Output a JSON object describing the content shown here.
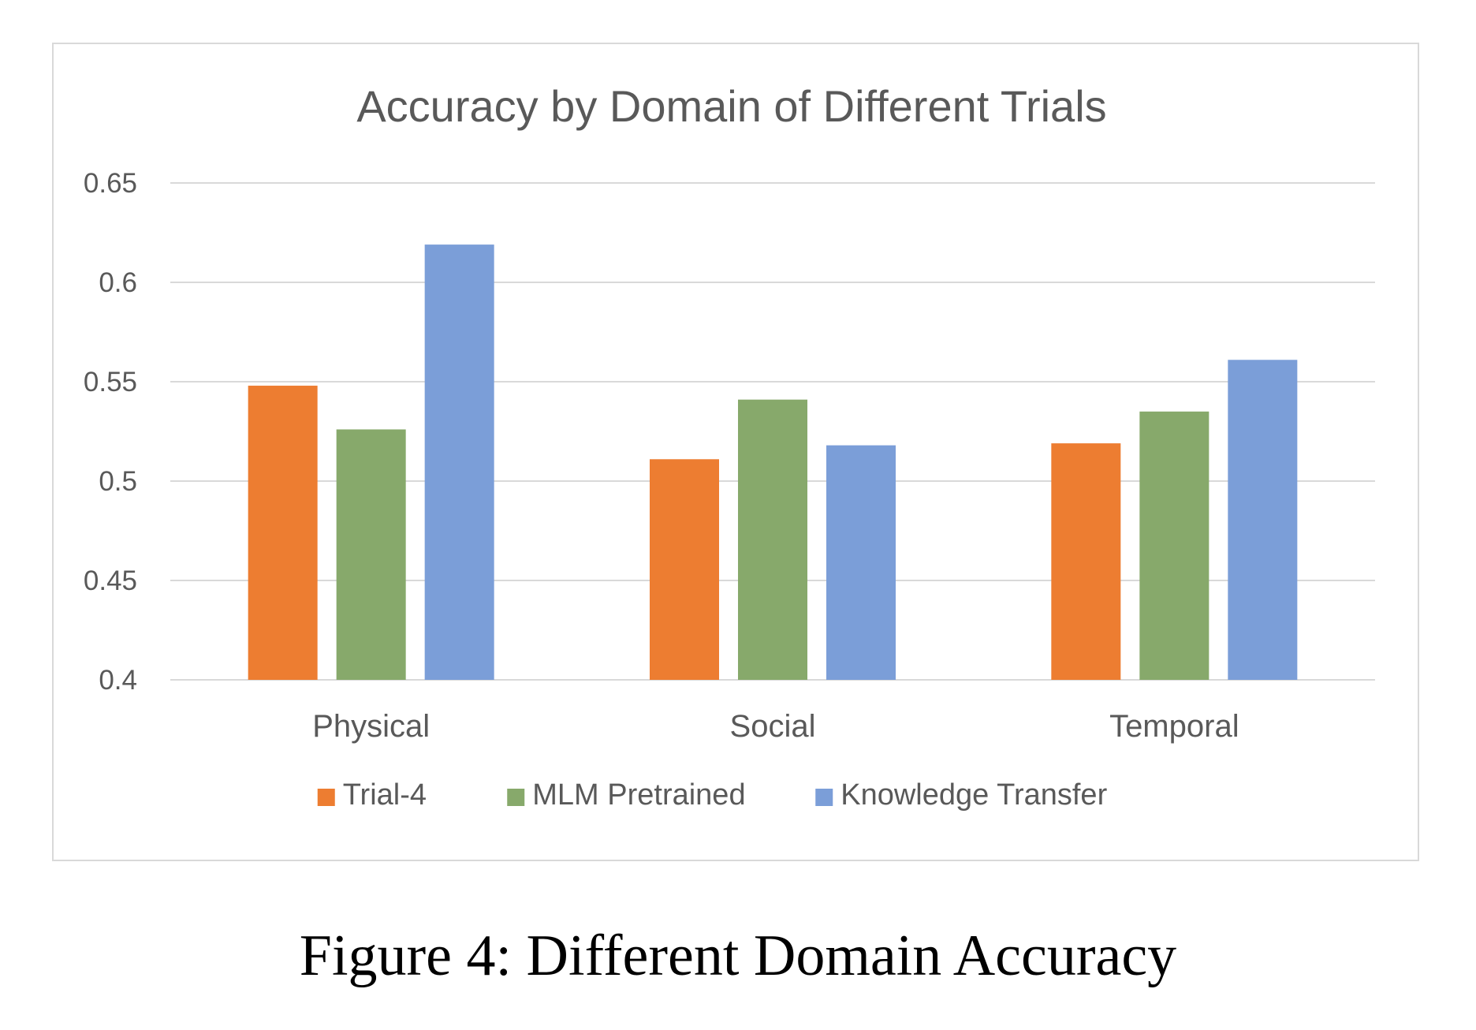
{
  "caption": "Figure 4: Different Domain Accuracy",
  "colors": {
    "grid": "#d9d9d9",
    "text": "#595959",
    "frame": "#d9d9d9"
  },
  "chart_data": {
    "type": "bar",
    "title": "Accuracy by Domain of Different Trials",
    "xlabel": "",
    "ylabel": "",
    "categories": [
      "Physical",
      "Social",
      "Temporal"
    ],
    "ylim": [
      0.4,
      0.65
    ],
    "yticks": [
      "0.4",
      "0.45",
      "0.5",
      "0.55",
      "0.6",
      "0.65"
    ],
    "grid": true,
    "legend_position": "bottom",
    "series": [
      {
        "name": "Trial-4",
        "color": "#ed7d31",
        "values": [
          0.548,
          0.511,
          0.519
        ]
      },
      {
        "name": "MLM Pretrained",
        "color": "#87a96b",
        "values": [
          0.526,
          0.541,
          0.535
        ]
      },
      {
        "name": "Knowledge Transfer",
        "color": "#7b9ed8",
        "values": [
          0.619,
          0.518,
          0.561
        ]
      }
    ]
  }
}
